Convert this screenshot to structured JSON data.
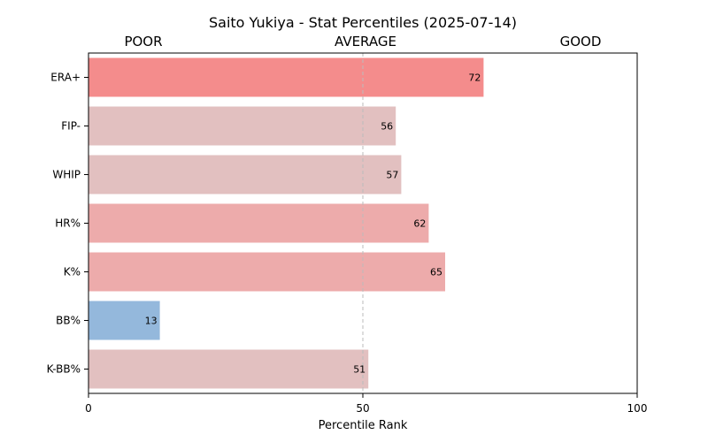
{
  "chart_data": {
    "type": "bar",
    "orientation": "horizontal",
    "title": "Saito Yukiya - Stat Percentiles (2025-07-14)",
    "xlabel": "Percentile Rank",
    "ylabel": "",
    "xlim": [
      0,
      100
    ],
    "xticks": [
      0,
      50,
      100
    ],
    "grid": false,
    "reference_line": 50,
    "zone_labels": [
      "POOR",
      "AVERAGE",
      "GOOD"
    ],
    "categories": [
      "ERA+",
      "FIP-",
      "WHIP",
      "HR%",
      "K%",
      "BB%",
      "K-BB%"
    ],
    "values": [
      72,
      56,
      57,
      62,
      65,
      13,
      51
    ],
    "bar_colors": [
      "#f48c8c",
      "#e2c0c0",
      "#e2c0c0",
      "#edabab",
      "#edabab",
      "#94b8dc",
      "#e2c0c0"
    ]
  }
}
